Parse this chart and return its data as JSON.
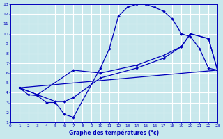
{
  "title": "Graphe des températures (°c)",
  "bg_color": "#c8e8ec",
  "grid_color": "#ffffff",
  "line_color": "#0000bb",
  "xlim": [
    0,
    23
  ],
  "ylim": [
    1,
    13
  ],
  "xticks": [
    0,
    1,
    2,
    3,
    4,
    5,
    6,
    7,
    8,
    9,
    10,
    11,
    12,
    13,
    14,
    15,
    16,
    17,
    18,
    19,
    20,
    21,
    22,
    23
  ],
  "yticks": [
    1,
    2,
    3,
    4,
    5,
    6,
    7,
    8,
    9,
    10,
    11,
    12,
    13
  ],
  "curve1_x": [
    1,
    2,
    3,
    4,
    5,
    6,
    7,
    10,
    11,
    12,
    13,
    14,
    15,
    16,
    17,
    18,
    19,
    20,
    21,
    22,
    23
  ],
  "curve1_y": [
    4.5,
    3.8,
    3.7,
    3.0,
    3.0,
    1.8,
    1.5,
    6.5,
    8.5,
    11.8,
    12.7,
    13.0,
    13.0,
    12.7,
    12.3,
    11.5,
    10.0,
    9.7,
    8.5,
    6.5,
    6.3
  ],
  "curve2_x": [
    1,
    3,
    5,
    6,
    7,
    10,
    14,
    17,
    19,
    20,
    22,
    23
  ],
  "curve2_y": [
    4.5,
    3.8,
    3.1,
    3.1,
    3.5,
    5.5,
    6.5,
    7.5,
    8.7,
    10.0,
    9.5,
    6.3
  ],
  "curve3_x": [
    1,
    3,
    7,
    10,
    14,
    17,
    19,
    20,
    22,
    23
  ],
  "curve3_y": [
    4.5,
    3.8,
    6.3,
    6.0,
    6.8,
    7.8,
    8.7,
    10.0,
    9.5,
    6.3
  ],
  "curve4_x": [
    1,
    23
  ],
  "curve4_y": [
    4.5,
    6.3
  ]
}
